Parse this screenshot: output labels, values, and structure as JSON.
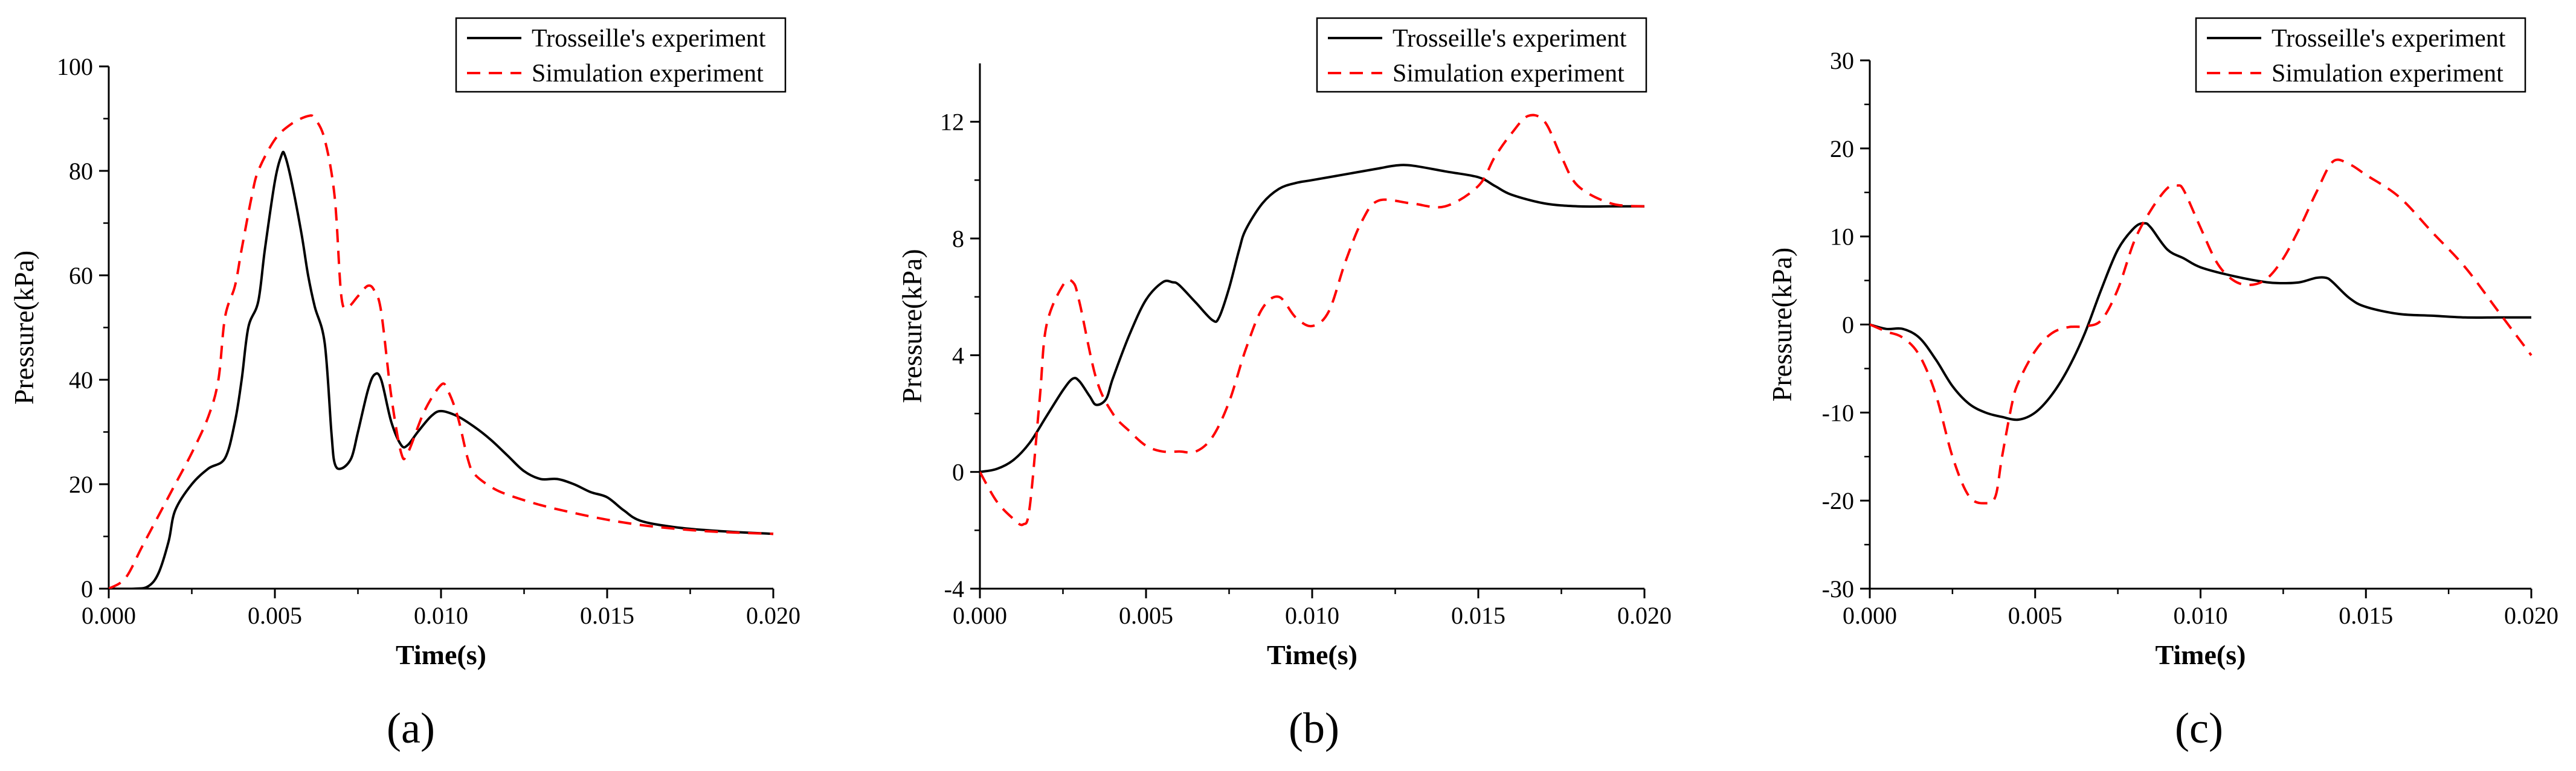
{
  "panel_labels": [
    "(a)",
    "(b)",
    "(c)"
  ],
  "chart_data": [
    {
      "type": "line",
      "panel": "(a)",
      "xlabel": "Time(s)",
      "ylabel": "Pressure(kPa)",
      "xlim": [
        0,
        0.02
      ],
      "ylim": [
        0,
        100
      ],
      "xticks": [
        0,
        0.005,
        0.01,
        0.015,
        0.02
      ],
      "xtick_labels": [
        "0.000",
        "0.005",
        "0.010",
        "0.015",
        "0.020"
      ],
      "yticks": [
        0,
        20,
        40,
        60,
        80,
        100
      ],
      "ytick_labels": [
        "0",
        "20",
        "40",
        "60",
        "80",
        "100"
      ],
      "legend_position": "top-right",
      "series": [
        {
          "name": "Trosseille's experiment",
          "color": "#000000",
          "dash": "solid",
          "x": [
            0,
            0.0008,
            0.0012,
            0.0015,
            0.0018,
            0.002,
            0.0025,
            0.003,
            0.0035,
            0.0038,
            0.004,
            0.0042,
            0.0045,
            0.0047,
            0.005,
            0.0052,
            0.0053,
            0.0055,
            0.0058,
            0.006,
            0.0062,
            0.0065,
            0.0067,
            0.0068,
            0.007,
            0.0073,
            0.0075,
            0.0078,
            0.008,
            0.0082,
            0.0085,
            0.0088,
            0.009,
            0.0093,
            0.0097,
            0.01,
            0.0105,
            0.011,
            0.0115,
            0.012,
            0.0125,
            0.013,
            0.0135,
            0.014,
            0.0145,
            0.015,
            0.0155,
            0.016,
            0.017,
            0.018,
            0.019,
            0.02
          ],
          "y": [
            0,
            0,
            0.5,
            3,
            9,
            15,
            20,
            23,
            25,
            32,
            40,
            50,
            55,
            65,
            78,
            83,
            83,
            78,
            68,
            60,
            54,
            47,
            30,
            24,
            23,
            25,
            30,
            38,
            41,
            40,
            32,
            27.5,
            27.5,
            30,
            33,
            34,
            33,
            31,
            28.5,
            25.5,
            22.5,
            21,
            21,
            20,
            18.5,
            17.5,
            15,
            13,
            11.8,
            11.2,
            10.8,
            10.5
          ]
        },
        {
          "name": "Simulation experiment",
          "color": "#ff0000",
          "dash": "dashed",
          "x": [
            0,
            0.0005,
            0.001,
            0.0015,
            0.002,
            0.0025,
            0.003,
            0.0033,
            0.0035,
            0.0038,
            0.004,
            0.0043,
            0.0045,
            0.005,
            0.0055,
            0.006,
            0.0062,
            0.0065,
            0.0068,
            0.007,
            0.0072,
            0.0075,
            0.0078,
            0.008,
            0.0082,
            0.0085,
            0.0088,
            0.009,
            0.0095,
            0.01,
            0.0102,
            0.0105,
            0.0108,
            0.011,
            0.0115,
            0.012,
            0.013,
            0.014,
            0.015,
            0.016,
            0.017,
            0.018,
            0.019,
            0.02
          ],
          "y": [
            0,
            2,
            8,
            14,
            20,
            26,
            33,
            40,
            52,
            58,
            65,
            75,
            80,
            86,
            89,
            90.5,
            90,
            86,
            75,
            56,
            54,
            56,
            58,
            57,
            53,
            37,
            26,
            26,
            34,
            39,
            38,
            33,
            25,
            22,
            19.5,
            18,
            16,
            14.5,
            13.2,
            12.2,
            11.5,
            11,
            10.7,
            10.5
          ]
        }
      ]
    },
    {
      "type": "line",
      "panel": "(b)",
      "xlabel": "Time(s)",
      "ylabel": "Pressure(kPa)",
      "xlim": [
        0,
        0.02
      ],
      "ylim": [
        -4,
        14
      ],
      "xticks": [
        0,
        0.005,
        0.01,
        0.015,
        0.02
      ],
      "xtick_labels": [
        "0.000",
        "0.005",
        "0.010",
        "0.015",
        "0.020"
      ],
      "yticks": [
        -4,
        0,
        4,
        8,
        12
      ],
      "ytick_labels": [
        "-4",
        "0",
        "4",
        "8",
        "12"
      ],
      "legend_position": "top-right",
      "series": [
        {
          "name": "Trosseille's experiment",
          "color": "#000000",
          "dash": "solid",
          "x": [
            0,
            0.0005,
            0.001,
            0.0015,
            0.002,
            0.0025,
            0.0028,
            0.003,
            0.0033,
            0.0035,
            0.0038,
            0.004,
            0.0045,
            0.005,
            0.0055,
            0.0058,
            0.006,
            0.0065,
            0.007,
            0.0072,
            0.0075,
            0.0078,
            0.008,
            0.0085,
            0.009,
            0.0095,
            0.01,
            0.011,
            0.012,
            0.0125,
            0.013,
            0.014,
            0.015,
            0.0155,
            0.016,
            0.017,
            0.018,
            0.019,
            0.02
          ],
          "y": [
            0,
            0.1,
            0.4,
            1.0,
            1.9,
            2.8,
            3.2,
            3.1,
            2.6,
            2.3,
            2.5,
            3.2,
            4.7,
            5.9,
            6.5,
            6.5,
            6.4,
            5.8,
            5.2,
            5.3,
            6.3,
            7.6,
            8.3,
            9.2,
            9.7,
            9.9,
            10.0,
            10.2,
            10.4,
            10.5,
            10.5,
            10.3,
            10.1,
            9.8,
            9.5,
            9.2,
            9.1,
            9.1,
            9.1
          ]
        },
        {
          "name": "Simulation experiment",
          "color": "#ff0000",
          "dash": "dashed",
          "x": [
            0,
            0.0005,
            0.001,
            0.0013,
            0.0015,
            0.0018,
            0.002,
            0.0025,
            0.0028,
            0.003,
            0.0035,
            0.004,
            0.0045,
            0.005,
            0.0055,
            0.006,
            0.0065,
            0.007,
            0.0075,
            0.008,
            0.0085,
            0.009,
            0.0095,
            0.01,
            0.0105,
            0.011,
            0.0115,
            0.012,
            0.013,
            0.014,
            0.015,
            0.0155,
            0.016,
            0.0165,
            0.017,
            0.0175,
            0.018,
            0.019,
            0.02
          ],
          "y": [
            0,
            -1.0,
            -1.6,
            -1.8,
            -1.2,
            2.5,
            5.0,
            6.4,
            6.5,
            5.8,
            3.2,
            2.0,
            1.4,
            0.9,
            0.7,
            0.7,
            0.7,
            1.2,
            2.4,
            4.2,
            5.6,
            6.0,
            5.3,
            5.0,
            5.5,
            7.2,
            8.6,
            9.3,
            9.2,
            9.1,
            9.8,
            10.8,
            11.6,
            12.2,
            12.0,
            10.8,
            9.8,
            9.2,
            9.1
          ]
        }
      ]
    },
    {
      "type": "line",
      "panel": "(c)",
      "xlabel": "Time(s)",
      "ylabel": "Pressure(kPa)",
      "xlim": [
        0,
        0.02
      ],
      "ylim": [
        -30,
        30
      ],
      "xticks": [
        0,
        0.005,
        0.01,
        0.015,
        0.02
      ],
      "xtick_labels": [
        "0.000",
        "0.005",
        "0.010",
        "0.015",
        "0.020"
      ],
      "yticks": [
        -30,
        -20,
        -10,
        0,
        10,
        20,
        30
      ],
      "ytick_labels": [
        "-30",
        "-20",
        "-10",
        "0",
        "10",
        "20",
        "30"
      ],
      "legend_position": "top-right",
      "series": [
        {
          "name": "Trosseille's experiment",
          "color": "#000000",
          "dash": "solid",
          "x": [
            0,
            0.0005,
            0.001,
            0.0015,
            0.002,
            0.0025,
            0.003,
            0.0035,
            0.004,
            0.0045,
            0.005,
            0.0055,
            0.006,
            0.0065,
            0.007,
            0.0075,
            0.008,
            0.0083,
            0.0085,
            0.009,
            0.0095,
            0.01,
            0.011,
            0.012,
            0.0125,
            0.013,
            0.0135,
            0.0138,
            0.014,
            0.0145,
            0.015,
            0.016,
            0.017,
            0.018,
            0.019,
            0.02
          ],
          "y": [
            0,
            -0.5,
            -0.5,
            -1.5,
            -4,
            -7,
            -9,
            -10,
            -10.5,
            -10.8,
            -10,
            -8,
            -5,
            -1,
            4,
            8.5,
            11,
            11.5,
            11,
            8.5,
            7.5,
            6.5,
            5.5,
            4.8,
            4.7,
            4.8,
            5.3,
            5.3,
            4.8,
            3.0,
            2.0,
            1.2,
            1.0,
            0.8,
            0.8,
            0.8
          ]
        },
        {
          "name": "Simulation experiment",
          "color": "#ff0000",
          "dash": "dashed",
          "x": [
            0,
            0.0005,
            0.001,
            0.0015,
            0.002,
            0.0025,
            0.003,
            0.0035,
            0.0038,
            0.004,
            0.0043,
            0.0045,
            0.005,
            0.0055,
            0.006,
            0.0065,
            0.007,
            0.0075,
            0.008,
            0.0085,
            0.009,
            0.0093,
            0.0095,
            0.01,
            0.0105,
            0.011,
            0.0115,
            0.012,
            0.0125,
            0.013,
            0.0135,
            0.014,
            0.0145,
            0.015,
            0.016,
            0.017,
            0.018,
            0.019,
            0.02
          ],
          "y": [
            0,
            -0.8,
            -1.5,
            -3.5,
            -8,
            -15,
            -19.5,
            -20.3,
            -19.5,
            -15,
            -9,
            -6.5,
            -3,
            -1.0,
            -0.3,
            -0.2,
            0.5,
            4,
            9.5,
            13,
            15.5,
            15.8,
            15.2,
            11,
            7,
            5,
            4.5,
            5.2,
            7.5,
            11,
            15,
            18.5,
            18.2,
            17,
            14.5,
            10.5,
            6.5,
            1.5,
            -3.5
          ]
        }
      ]
    }
  ]
}
